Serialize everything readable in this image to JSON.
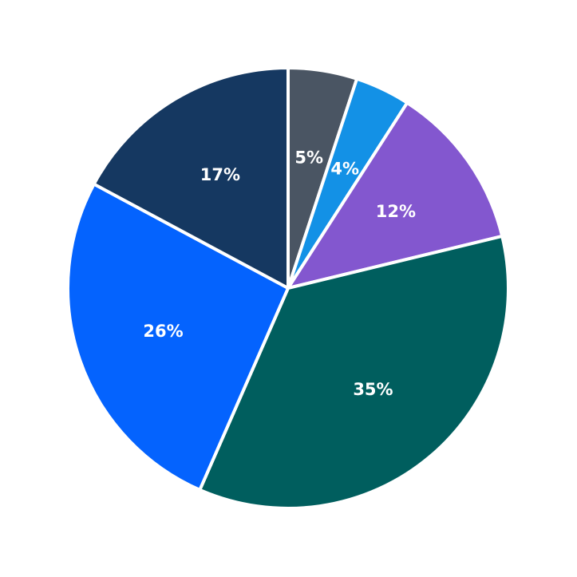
{
  "chart_data": {
    "type": "pie",
    "title": "",
    "legend": false,
    "start_angle_deg": 90,
    "direction": "clockwise",
    "slices": [
      {
        "label": "5%",
        "value": 5,
        "color": "#4a5563"
      },
      {
        "label": "4%",
        "value": 4,
        "color": "#1391e6"
      },
      {
        "label": "12%",
        "value": 12,
        "color": "#8357cf"
      },
      {
        "label": "35%",
        "value": 35,
        "color": "#005e5e"
      },
      {
        "label": "26%",
        "value": 26,
        "color": "#0463fe"
      },
      {
        "label": "17%",
        "value": 17,
        "color": "#153861"
      }
    ]
  }
}
